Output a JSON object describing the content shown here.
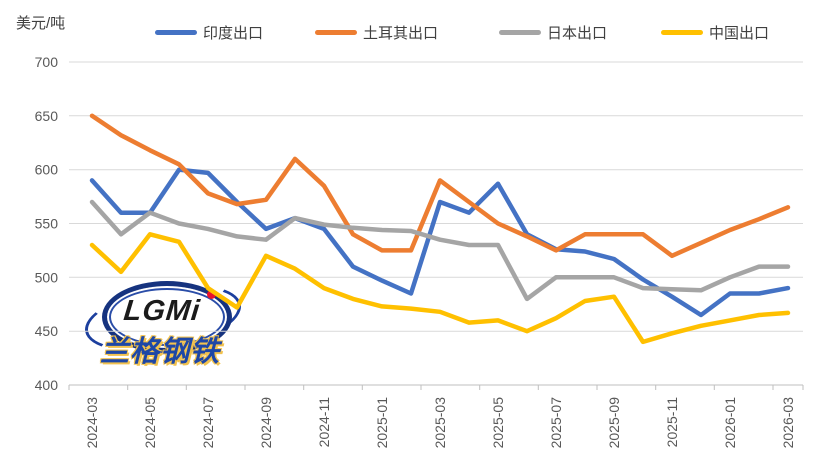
{
  "unit_label": "美元/吨",
  "watermark": {
    "logo_text": "LGMi",
    "logo_sub": "兰格钢铁"
  },
  "chart_data": {
    "type": "line",
    "title": "",
    "ylabel": "美元/吨",
    "xlabel": "",
    "ylim": [
      400,
      700
    ],
    "y_ticks": [
      700,
      650,
      600,
      550,
      500,
      450,
      400
    ],
    "grid": "horizontal",
    "legend_position": "top",
    "x": [
      "2024-03",
      "2024-04",
      "2024-05",
      "2024-06",
      "2024-07",
      "2024-08",
      "2024-09",
      "2024-10",
      "2024-11",
      "2024-12",
      "2025-01",
      "2025-02",
      "2025-03",
      "2025-04",
      "2025-05",
      "2025-06",
      "2025-07",
      "2025-08",
      "2025-09",
      "2025-10",
      "2025-11",
      "2025-12",
      "2026-01",
      "2026-02",
      "2026-03"
    ],
    "x_tick_labels": [
      "2024-03",
      "2024-05",
      "2024-07",
      "2024-09",
      "2024-11",
      "2025-01",
      "2025-03",
      "2025-05",
      "2025-07",
      "2025-09",
      "2025-11",
      "2026-01",
      "2026-03"
    ],
    "series": [
      {
        "name": "印度出口",
        "color": "#4472C4",
        "values": [
          590,
          560,
          560,
          600,
          597,
          570,
          545,
          555,
          545,
          510,
          497,
          485,
          570,
          560,
          587,
          540,
          526,
          524,
          517,
          498,
          482,
          465,
          485,
          485,
          490
        ]
      },
      {
        "name": "土耳其出口",
        "color": "#ED7D31",
        "values": [
          650,
          632,
          618,
          605,
          578,
          568,
          572,
          610,
          585,
          540,
          525,
          525,
          590,
          570,
          550,
          538,
          525,
          540,
          540,
          540,
          520,
          532,
          544,
          554,
          565
        ]
      },
      {
        "name": "日本出口",
        "color": "#A5A5A5",
        "values": [
          570,
          540,
          560,
          550,
          545,
          538,
          535,
          555,
          549,
          546,
          544,
          543,
          535,
          530,
          530,
          480,
          500,
          500,
          500,
          490,
          489,
          488,
          500,
          510,
          510
        ]
      },
      {
        "name": "中国出口",
        "color": "#FFC000",
        "values": [
          530,
          505,
          540,
          533,
          490,
          472,
          520,
          508,
          490,
          480,
          473,
          471,
          468,
          458,
          460,
          450,
          462,
          478,
          482,
          440,
          448,
          455,
          460,
          465,
          467
        ]
      }
    ],
    "axis_text_color": "#595959",
    "gridline_color": "#D9D9D9",
    "axis_line_color": "#BFBFBF"
  }
}
